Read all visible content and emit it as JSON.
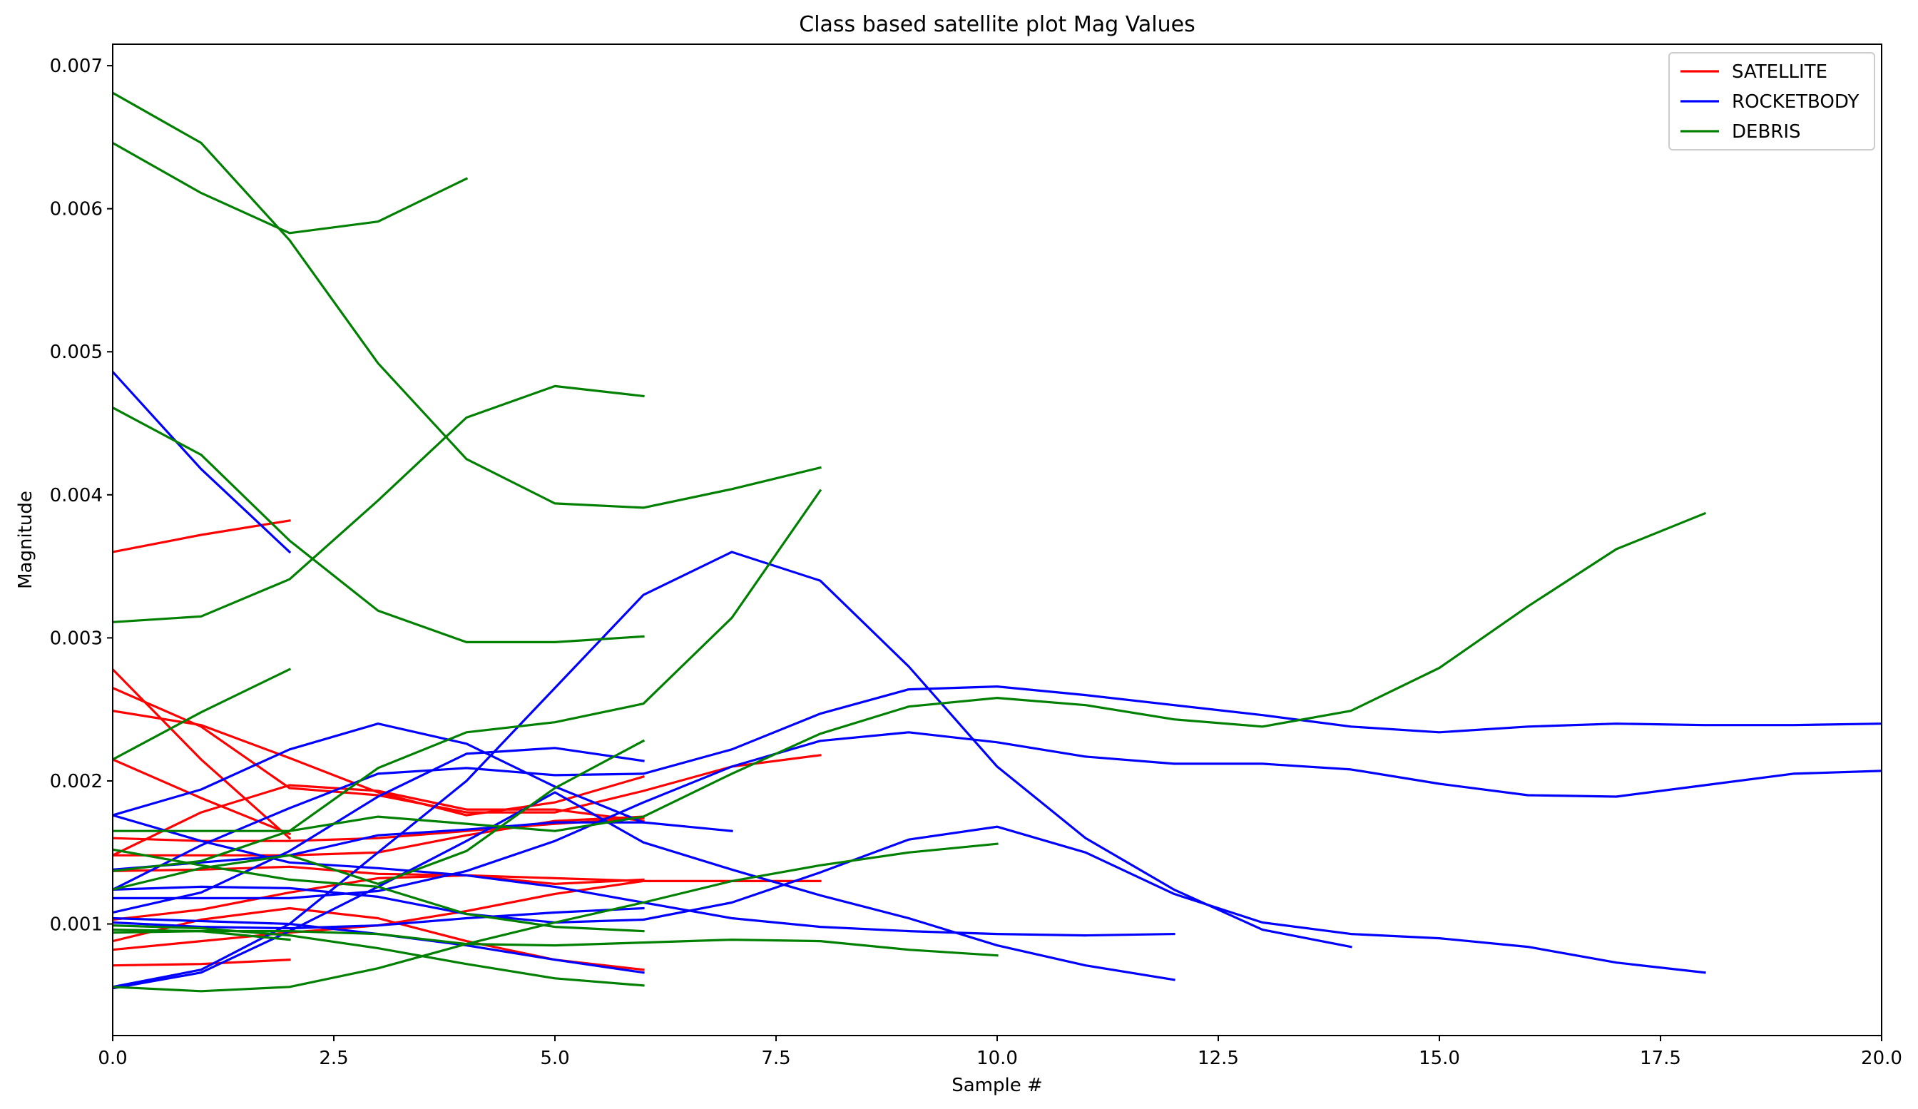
{
  "chart_data": {
    "type": "line",
    "title": "Class based satellite plot Mag Values",
    "xlabel": "Sample #",
    "ylabel": "Magnitude",
    "xlim": [
      0,
      20
    ],
    "ylim": [
      0.00022,
      0.00715
    ],
    "xticks": [
      0,
      2.5,
      5,
      7.5,
      10,
      12.5,
      15,
      17.5,
      20
    ],
    "xtick_labels": [
      "0.0",
      "2.5",
      "5.0",
      "7.5",
      "10.0",
      "12.5",
      "15.0",
      "17.5",
      "20.0"
    ],
    "yticks": [
      0.001,
      0.002,
      0.003,
      0.004,
      0.005,
      0.006,
      0.007
    ],
    "ytick_labels": [
      "0.001",
      "0.002",
      "0.003",
      "0.004",
      "0.005",
      "0.006",
      "0.007"
    ],
    "grid": false,
    "legend_position": "top-right",
    "legend": [
      {
        "label": "SATELLITE",
        "color": "#ff0000"
      },
      {
        "label": "ROCKETBODY",
        "color": "#0000ff"
      },
      {
        "label": "DEBRIS",
        "color": "#008000"
      }
    ],
    "colors": {
      "SATELLITE": "#ff0000",
      "ROCKETBODY": "#0000ff",
      "DEBRIS": "#008000"
    },
    "series": [
      {
        "class": "SATELLITE",
        "values": [
          0.0036,
          0.00372,
          0.00382
        ]
      },
      {
        "class": "SATELLITE",
        "values": [
          0.00278,
          0.00215,
          0.0016
        ]
      },
      {
        "class": "SATELLITE",
        "values": [
          0.00265,
          0.00238,
          0.00195,
          0.0019,
          0.00178,
          0.00178,
          0.00193,
          0.0021,
          0.00218
        ]
      },
      {
        "class": "SATELLITE",
        "values": [
          0.00249,
          0.00239,
          0.00216,
          0.00192,
          0.00176,
          0.00185,
          0.00203
        ]
      },
      {
        "class": "SATELLITE",
        "values": [
          0.00215,
          0.00188,
          0.00163
        ]
      },
      {
        "class": "SATELLITE",
        "values": [
          0.00148,
          0.00178,
          0.00197,
          0.00193,
          0.0018,
          0.0018,
          0.00172
        ]
      },
      {
        "class": "SATELLITE",
        "values": [
          0.0016,
          0.00158,
          0.00158,
          0.0016,
          0.00165,
          0.0017,
          0.00174
        ]
      },
      {
        "class": "SATELLITE",
        "values": [
          0.00148,
          0.00148,
          0.00148,
          0.0015,
          0.00162,
          0.00172,
          0.00175
        ]
      },
      {
        "class": "SATELLITE",
        "values": [
          0.00137,
          0.00138,
          0.0014,
          0.00135,
          0.00134,
          0.00132,
          0.0013,
          0.0013,
          0.0013
        ]
      },
      {
        "class": "SATELLITE",
        "values": [
          0.00103,
          0.0011,
          0.00122,
          0.00132,
          0.00134,
          0.00128,
          0.00131
        ]
      },
      {
        "class": "SATELLITE",
        "values": [
          0.00088,
          0.00103,
          0.00111,
          0.00104,
          0.00088,
          0.00075,
          0.00068
        ]
      },
      {
        "class": "SATELLITE",
        "values": [
          0.00082,
          0.00088,
          0.00094,
          0.00099,
          0.00109,
          0.00121,
          0.0013
        ]
      },
      {
        "class": "SATELLITE",
        "values": [
          0.00071,
          0.00072,
          0.00075
        ]
      },
      {
        "class": "ROCKETBODY",
        "values": [
          0.00486,
          0.00418,
          0.0036
        ]
      },
      {
        "class": "ROCKETBODY",
        "values": [
          0.00176,
          0.00194,
          0.00222,
          0.0024,
          0.00226,
          0.00196,
          0.00171,
          0.00165
        ]
      },
      {
        "class": "ROCKETBODY",
        "values": [
          0.00124,
          0.00155,
          0.00181,
          0.00205,
          0.00209,
          0.00204,
          0.00205,
          0.00222,
          0.00247,
          0.00264,
          0.00266,
          0.0026,
          0.00253,
          0.00246,
          0.00238,
          0.00234,
          0.00238,
          0.0024,
          0.00239,
          0.00239,
          0.0024
        ]
      },
      {
        "class": "ROCKETBODY",
        "values": [
          0.00176,
          0.00158,
          0.00143,
          0.00139,
          0.00134,
          0.00126,
          0.00115,
          0.00104,
          0.00098,
          0.00095,
          0.00093,
          0.00092,
          0.00093
        ]
      },
      {
        "class": "ROCKETBODY",
        "values": [
          0.00138,
          0.00143,
          0.00148,
          0.00162,
          0.00166,
          0.00171,
          0.00171
        ]
      },
      {
        "class": "ROCKETBODY",
        "values": [
          0.00124,
          0.00126,
          0.00125,
          0.00119,
          0.00107,
          0.00101,
          0.00103,
          0.00115,
          0.00136,
          0.00159,
          0.00168,
          0.0015,
          0.00121,
          0.00101,
          0.00093,
          0.0009,
          0.00084,
          0.00073,
          0.00066
        ]
      },
      {
        "class": "ROCKETBODY",
        "values": [
          0.00118,
          0.00118,
          0.00118,
          0.00123,
          0.00137,
          0.00158,
          0.00185,
          0.0021,
          0.00228,
          0.00234,
          0.00227,
          0.00217,
          0.00212,
          0.00212,
          0.00208,
          0.00198,
          0.0019,
          0.00189,
          0.00197,
          0.00205,
          0.00207
        ]
      },
      {
        "class": "ROCKETBODY",
        "values": [
          0.00108,
          0.00122,
          0.00151,
          0.00189,
          0.00219,
          0.00223,
          0.00214
        ]
      },
      {
        "class": "ROCKETBODY",
        "values": [
          0.00104,
          0.00102,
          0.001,
          0.00093,
          0.00085,
          0.00075,
          0.00066
        ]
      },
      {
        "class": "ROCKETBODY",
        "values": [
          0.00056,
          0.00068,
          0.001,
          0.0015,
          0.002,
          0.00265,
          0.0033,
          0.0036,
          0.0034,
          0.0028,
          0.0021,
          0.0016,
          0.00124,
          0.00096,
          0.00084
        ]
      },
      {
        "class": "ROCKETBODY",
        "values": [
          0.00055,
          0.00066,
          0.00095,
          0.00126,
          0.00158,
          0.00192,
          0.00157,
          0.00138,
          0.0012,
          0.00104,
          0.00085,
          0.00071,
          0.00061
        ]
      },
      {
        "class": "ROCKETBODY",
        "values": [
          0.00101,
          0.00098,
          0.00097,
          0.00099,
          0.00104,
          0.00108,
          0.00111
        ]
      },
      {
        "class": "DEBRIS",
        "values": [
          0.00681,
          0.00646,
          0.00578,
          0.00492,
          0.00425,
          0.00394,
          0.00391,
          0.00404,
          0.00419
        ]
      },
      {
        "class": "DEBRIS",
        "values": [
          0.00646,
          0.00611,
          0.00583,
          0.00591,
          0.00621
        ]
      },
      {
        "class": "DEBRIS",
        "values": [
          0.00461,
          0.00428,
          0.00368,
          0.00319,
          0.00297,
          0.00297,
          0.00301
        ]
      },
      {
        "class": "DEBRIS",
        "values": [
          0.00311,
          0.00315,
          0.00341,
          0.00396,
          0.00454,
          0.00476,
          0.00469
        ]
      },
      {
        "class": "DEBRIS",
        "values": [
          0.00215,
          0.00248,
          0.00278
        ]
      },
      {
        "class": "DEBRIS",
        "values": [
          0.00165,
          0.00165,
          0.00165,
          0.00175,
          0.0017,
          0.00165,
          0.00175,
          0.00205,
          0.00233,
          0.00252,
          0.00258,
          0.00253,
          0.00243,
          0.00238,
          0.00249,
          0.00279,
          0.00322,
          0.00362,
          0.00387
        ]
      },
      {
        "class": "DEBRIS",
        "values": [
          0.00137,
          0.00144,
          0.00165,
          0.00209,
          0.00234,
          0.00241,
          0.00254,
          0.00314,
          0.00403
        ]
      },
      {
        "class": "DEBRIS",
        "values": [
          0.00152,
          0.00141,
          0.00131,
          0.00126,
          0.00107,
          0.00098,
          0.00095
        ]
      },
      {
        "class": "DEBRIS",
        "values": [
          0.00124,
          0.00139,
          0.00148,
          0.00128,
          0.00151,
          0.00195,
          0.00228
        ]
      },
      {
        "class": "DEBRIS",
        "values": [
          0.00099,
          0.00097,
          0.00092,
          0.00083,
          0.00072,
          0.00062,
          0.00057
        ]
      },
      {
        "class": "DEBRIS",
        "values": [
          0.00094,
          0.00095,
          0.00089
        ]
      },
      {
        "class": "DEBRIS",
        "values": [
          0.00056,
          0.00053,
          0.00056,
          0.00069,
          0.00086,
          0.00101,
          0.00115,
          0.0013,
          0.00141,
          0.0015,
          0.00156
        ]
      },
      {
        "class": "DEBRIS",
        "values": [
          0.00096,
          0.00095,
          0.00095,
          0.00093,
          0.00086,
          0.00085,
          0.00087,
          0.00089,
          0.00088,
          0.00082,
          0.00078
        ]
      }
    ]
  }
}
